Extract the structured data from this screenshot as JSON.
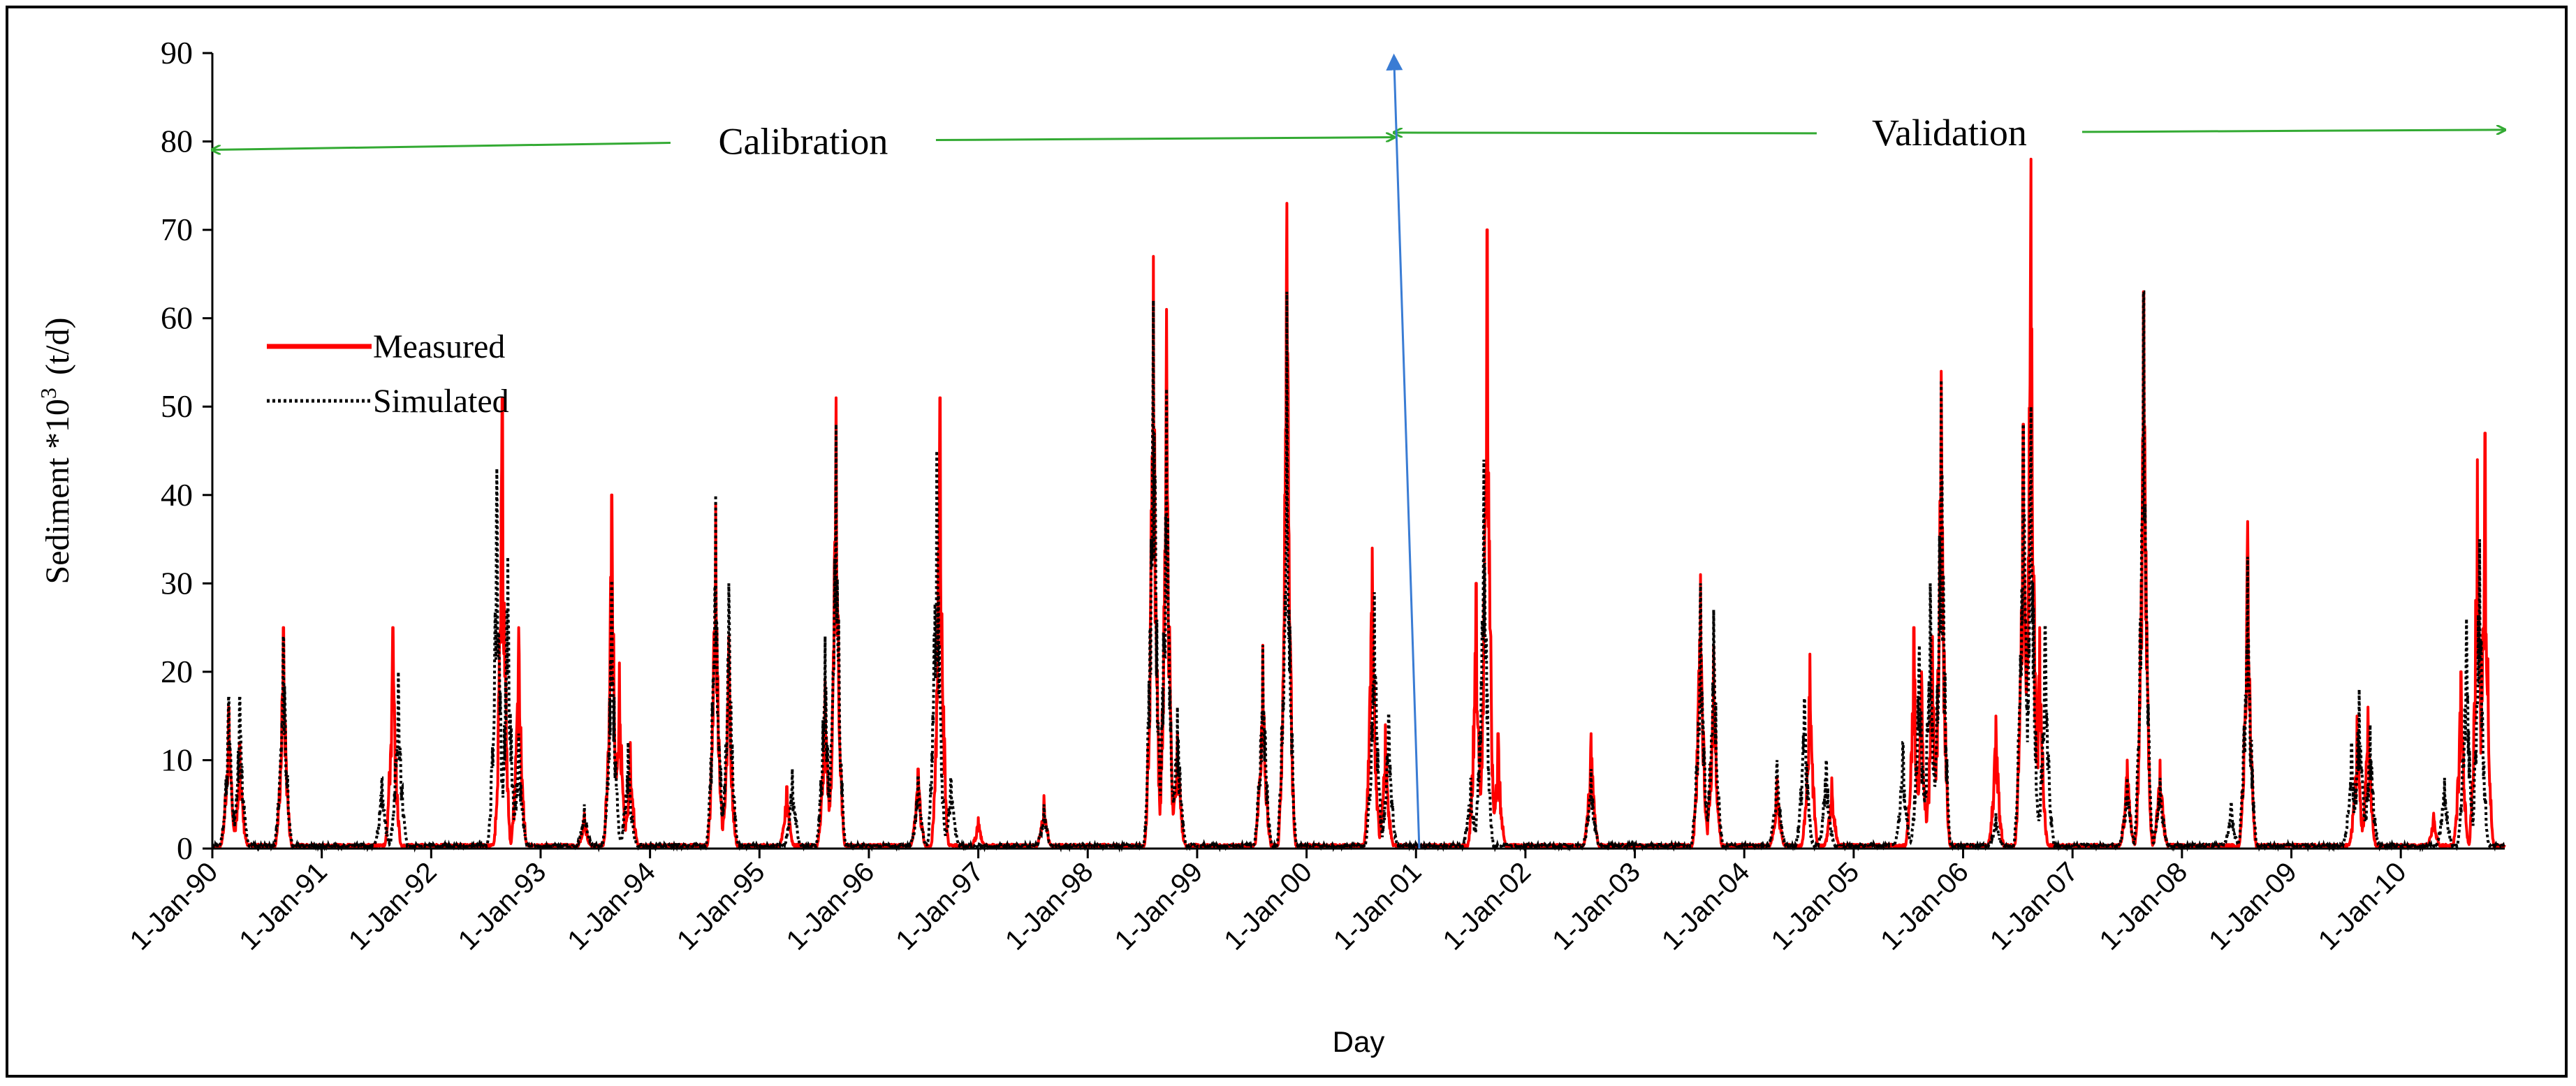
{
  "chart_data": {
    "type": "line",
    "title": "",
    "xlabel": "Day",
    "ylabel": "Sediment *10",
    "ylabel_exponent": "3",
    "ylabel_unit": "(t/d)",
    "ylim": [
      0,
      90
    ],
    "yticks": [
      "0",
      "10",
      "20",
      "30",
      "40",
      "50",
      "60",
      "70",
      "80",
      "90"
    ],
    "xlim": [
      1990.0,
      2010.95
    ],
    "xtick_labels": [
      "1-Jan-90",
      "1-Jan-91",
      "1-Jan-92",
      "1-Jan-93",
      "1-Jan-94",
      "1-Jan-95",
      "1-Jan-96",
      "1-Jan-97",
      "1-Jan-98",
      "1-Jan-99",
      "1-Jan-00",
      "1-Jan-01",
      "1-Jan-02",
      "1-Jan-03",
      "1-Jan-04",
      "1-Jan-05",
      "1-Jan-06",
      "1-Jan-07",
      "1-Jan-08",
      "1-Jan-09",
      "1-Jan-10"
    ],
    "legend_position": "center-left",
    "periods": [
      {
        "label": "Calibration",
        "from": 1990.0,
        "to": 2000.8,
        "y": 80
      },
      {
        "label": "Validation",
        "from": 2000.8,
        "to": 2010.95,
        "y": 81
      }
    ],
    "split_marker": {
      "x": 2000.8,
      "y_top": 89
    },
    "colors": {
      "measured": "#ff0000",
      "simulated": "#000000",
      "period_arrows": "#33aa33",
      "split_arrow": "#3a7cd4"
    },
    "series": [
      {
        "name": "Measured",
        "style": "solid",
        "peaks": [
          [
            1990.15,
            16
          ],
          [
            1990.25,
            12
          ],
          [
            1990.65,
            25
          ],
          [
            1991.65,
            25
          ],
          [
            1992.65,
            51
          ],
          [
            1992.8,
            25
          ],
          [
            1993.4,
            4
          ],
          [
            1993.65,
            40
          ],
          [
            1993.72,
            21
          ],
          [
            1993.82,
            12
          ],
          [
            1994.6,
            39
          ],
          [
            1994.72,
            24
          ],
          [
            1995.25,
            7
          ],
          [
            1995.6,
            19
          ],
          [
            1995.7,
            51
          ],
          [
            1996.45,
            9
          ],
          [
            1996.65,
            51
          ],
          [
            1997.0,
            3.5
          ],
          [
            1997.6,
            6
          ],
          [
            1998.6,
            67
          ],
          [
            1998.72,
            61
          ],
          [
            1998.82,
            13
          ],
          [
            1999.6,
            23
          ],
          [
            1999.82,
            73
          ],
          [
            2000.6,
            34
          ],
          [
            2000.72,
            14
          ],
          [
            2001.55,
            30
          ],
          [
            2001.65,
            70
          ],
          [
            2001.75,
            13
          ],
          [
            2002.6,
            13
          ],
          [
            2003.6,
            31
          ],
          [
            2003.72,
            23
          ],
          [
            2004.3,
            8
          ],
          [
            2004.6,
            22
          ],
          [
            2004.8,
            8
          ],
          [
            2005.55,
            25
          ],
          [
            2005.62,
            20
          ],
          [
            2005.72,
            24
          ],
          [
            2005.8,
            54
          ],
          [
            2006.3,
            15
          ],
          [
            2006.55,
            48
          ],
          [
            2006.62,
            78
          ],
          [
            2006.7,
            25
          ],
          [
            2007.5,
            10
          ],
          [
            2007.65,
            63
          ],
          [
            2007.8,
            10
          ],
          [
            2008.6,
            37
          ],
          [
            2009.6,
            15
          ],
          [
            2009.7,
            16
          ],
          [
            2010.3,
            4
          ],
          [
            2010.55,
            20
          ],
          [
            2010.7,
            44
          ],
          [
            2010.77,
            47
          ]
        ]
      },
      {
        "name": "Simulated",
        "style": "dotted",
        "peaks": [
          [
            1990.15,
            17
          ],
          [
            1990.25,
            17
          ],
          [
            1990.65,
            24
          ],
          [
            1991.55,
            8
          ],
          [
            1991.7,
            20
          ],
          [
            1992.6,
            43
          ],
          [
            1992.7,
            33
          ],
          [
            1992.8,
            13
          ],
          [
            1993.4,
            5
          ],
          [
            1993.65,
            30
          ],
          [
            1993.8,
            12
          ],
          [
            1994.6,
            40
          ],
          [
            1994.72,
            30
          ],
          [
            1995.3,
            9
          ],
          [
            1995.6,
            24
          ],
          [
            1995.7,
            48
          ],
          [
            1996.45,
            8
          ],
          [
            1996.62,
            45
          ],
          [
            1996.75,
            8
          ],
          [
            1997.6,
            5
          ],
          [
            1998.6,
            62
          ],
          [
            1998.72,
            52
          ],
          [
            1998.82,
            16
          ],
          [
            1999.6,
            23
          ],
          [
            1999.82,
            63
          ],
          [
            2000.62,
            29
          ],
          [
            2000.75,
            15
          ],
          [
            2001.5,
            8
          ],
          [
            2001.62,
            44
          ],
          [
            2002.6,
            9
          ],
          [
            2003.6,
            30
          ],
          [
            2003.72,
            27
          ],
          [
            2004.3,
            10
          ],
          [
            2004.55,
            17
          ],
          [
            2004.75,
            10
          ],
          [
            2005.45,
            12
          ],
          [
            2005.6,
            23
          ],
          [
            2005.7,
            30
          ],
          [
            2005.8,
            53
          ],
          [
            2006.3,
            4
          ],
          [
            2006.55,
            48
          ],
          [
            2006.62,
            50
          ],
          [
            2006.75,
            25
          ],
          [
            2007.5,
            8
          ],
          [
            2007.65,
            63
          ],
          [
            2007.8,
            8
          ],
          [
            2008.45,
            5
          ],
          [
            2008.6,
            33
          ],
          [
            2009.55,
            12
          ],
          [
            2009.62,
            18
          ],
          [
            2009.72,
            14
          ],
          [
            2010.4,
            8
          ],
          [
            2010.6,
            26
          ],
          [
            2010.72,
            35
          ]
        ]
      }
    ]
  }
}
